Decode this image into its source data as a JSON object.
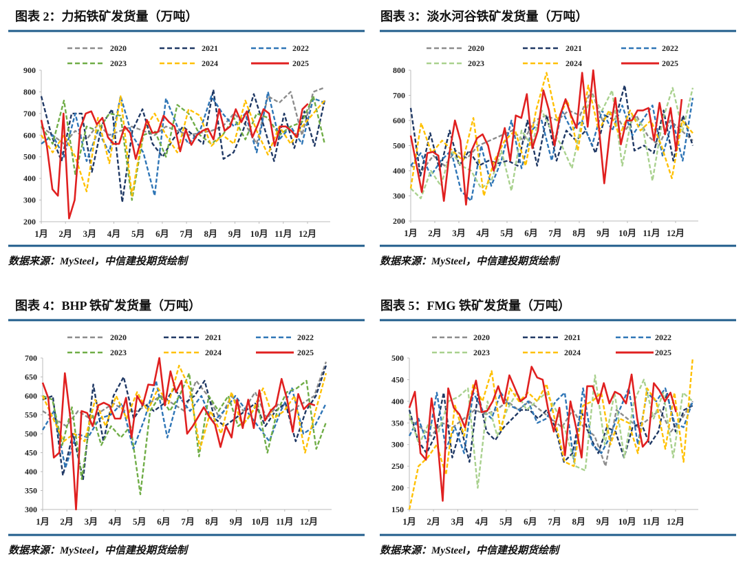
{
  "colors": {
    "2020": "#8c8c8c",
    "2021": "#1f3864",
    "2022": "#2e75b6",
    "2023": "#70ad47",
    "2023_light": "#a9d18e",
    "2024": "#ffc000",
    "2025": "#e02020",
    "rule": "#1f5c8b"
  },
  "chart_data": [
    {
      "type": "line",
      "title": "图表 2：力拓铁矿发货量（万吨）",
      "source": "数据来源：MySteel，中信建投期货绘制",
      "xlabel": "",
      "ylabel": "",
      "ylim": [
        200,
        900
      ],
      "yticks": [
        200,
        300,
        400,
        500,
        600,
        700,
        800,
        900
      ],
      "xticks": [
        "1月",
        "2月",
        "3月",
        "4月",
        "5月",
        "6月",
        "7月",
        "8月",
        "9月",
        "10月",
        "11月",
        "12月"
      ],
      "legend": "top",
      "series": [
        {
          "name": "2020",
          "values": [
            640,
            600,
            560,
            620,
            580,
            650,
            600,
            620,
            640,
            620,
            600,
            640,
            620,
            600,
            610,
            620,
            640,
            700,
            650,
            560,
            780,
            750,
            800,
            600,
            800,
            820
          ]
        },
        {
          "name": "2021",
          "values": [
            780,
            600,
            480,
            700,
            700,
            430,
            650,
            720,
            290,
            620,
            720,
            560,
            500,
            580,
            640,
            600,
            560,
            810,
            490,
            520,
            630,
            790,
            640,
            480,
            700,
            540,
            710,
            550,
            760
          ]
        },
        {
          "name": "2022",
          "values": [
            560,
            600,
            500,
            700,
            480,
            620,
            520,
            780,
            600,
            520,
            320,
            770,
            640,
            560,
            620,
            780,
            700,
            640,
            700,
            520,
            800,
            580,
            640,
            560,
            770,
            750
          ]
        },
        {
          "name": "2023",
          "values": [
            640,
            560,
            760,
            420,
            640,
            620,
            700,
            690,
            300,
            600,
            620,
            500,
            740,
            700,
            600,
            560,
            600,
            680,
            580,
            700,
            680,
            600,
            640,
            660,
            780,
            560
          ]
        },
        {
          "name": "2024",
          "values": [
            600,
            520,
            600,
            500,
            340,
            680,
            470,
            780,
            320,
            620,
            700,
            600,
            520,
            720,
            690,
            550,
            600,
            560,
            760,
            620,
            510,
            640,
            560,
            640,
            700,
            760
          ]
        },
        {
          "name": "2025",
          "values": [
            670,
            550,
            350,
            320,
            700,
            215,
            300,
            630,
            700,
            710,
            650,
            680,
            590,
            560,
            560,
            640,
            610,
            490,
            580,
            670,
            610,
            615,
            690,
            660,
            640,
            525,
            625,
            555,
            600,
            620,
            630,
            580,
            720,
            620,
            640,
            720,
            660,
            710,
            590,
            650,
            720,
            700,
            550,
            640,
            640,
            620,
            590,
            720,
            745
          ]
        }
      ]
    },
    {
      "type": "line",
      "title": "图表 3：淡水河谷铁矿发货量（万吨）",
      "source": "数据来源：MySteel，中信建投期货绘制",
      "xlabel": "",
      "ylabel": "",
      "ylim": [
        200,
        800
      ],
      "yticks": [
        200,
        300,
        400,
        500,
        600,
        700,
        800
      ],
      "xticks": [
        "1月",
        "2月",
        "3月",
        "4月",
        "5月",
        "6月",
        "7月",
        "8月",
        "9月",
        "10月",
        "11月",
        "12月"
      ],
      "legend": "top",
      "series": [
        {
          "name": "2020",
          "values": [
            420,
            400,
            460,
            420,
            480,
            450,
            500,
            520,
            540,
            560,
            520,
            600,
            620,
            600,
            640,
            620,
            720,
            600,
            640,
            560,
            620,
            540,
            500,
            600,
            560,
            520
          ]
        },
        {
          "name": "2021",
          "values": [
            650,
            380,
            550,
            400,
            560,
            420,
            480,
            420,
            440,
            430,
            440,
            420,
            600,
            420,
            620,
            440,
            560,
            520,
            560,
            470,
            620,
            600,
            740,
            480,
            500,
            470,
            640,
            440,
            620,
            500
          ]
        },
        {
          "name": "2022",
          "values": [
            420,
            470,
            380,
            440,
            480,
            320,
            280,
            500,
            340,
            440,
            600,
            410,
            560,
            600,
            440,
            640,
            560,
            600,
            500,
            640,
            560,
            660,
            540,
            600,
            660,
            460,
            600,
            440,
            690
          ]
        },
        {
          "name": "2023",
          "values": [
            330,
            290,
            400,
            340,
            480,
            420,
            400,
            330,
            360,
            480,
            320,
            560,
            500,
            640,
            560,
            500,
            410,
            600,
            700,
            640,
            720,
            420,
            620,
            580,
            360,
            600,
            730,
            560,
            730
          ]
        },
        {
          "name": "2024",
          "values": [
            330,
            590,
            470,
            520,
            480,
            440,
            610,
            300,
            440,
            520,
            560,
            420,
            640,
            790,
            600,
            680,
            480,
            740,
            560,
            640,
            540,
            640,
            560,
            600,
            500,
            370,
            600,
            550
          ]
        },
        {
          "name": "2025",
          "values": [
            540,
            430,
            315,
            470,
            475,
            460,
            280,
            470,
            600,
            520,
            265,
            480,
            530,
            545,
            500,
            400,
            480,
            570,
            440,
            620,
            610,
            705,
            490,
            560,
            720,
            640,
            500,
            620,
            685,
            620,
            570,
            790,
            575,
            800,
            580,
            350,
            550,
            690,
            505,
            600,
            600,
            640,
            640,
            650,
            520,
            670,
            545,
            650,
            480,
            685
          ]
        }
      ]
    },
    {
      "type": "line",
      "title": "图表 4：BHP 铁矿发货量（万吨）",
      "source": "数据来源：MySteel，中信建投期货绘制",
      "xlabel": "",
      "ylabel": "",
      "ylim": [
        300,
        700
      ],
      "yticks": [
        300,
        350,
        400,
        450,
        500,
        550,
        600,
        650,
        700
      ],
      "xticks": [
        "1月",
        "2月",
        "3月",
        "4月",
        "5月",
        "6月",
        "7月",
        "8月",
        "9月",
        "10月",
        "11月",
        "12月"
      ],
      "legend": "top",
      "series": [
        {
          "name": "2020",
          "values": [
            560,
            540,
            520,
            560,
            540,
            560,
            580,
            560,
            560,
            580,
            600,
            580,
            560,
            640,
            600,
            540,
            600,
            560,
            610,
            540,
            580,
            560,
            580,
            600,
            690
          ]
        },
        {
          "name": "2021",
          "values": [
            590,
            600,
            390,
            500,
            380,
            630,
            480,
            600,
            650,
            540,
            580,
            560,
            580,
            620,
            580,
            600,
            640,
            540,
            520,
            540,
            560,
            580,
            520,
            560,
            580,
            480,
            560,
            600,
            680
          ]
        },
        {
          "name": "2022",
          "values": [
            510,
            560,
            410,
            500,
            490,
            540,
            550,
            580,
            460,
            540,
            640,
            490,
            600,
            560,
            600,
            530,
            560,
            600,
            560,
            520,
            480,
            560,
            620,
            500,
            520,
            580
          ]
        },
        {
          "name": "2023",
          "values": [
            600,
            590,
            470,
            570,
            380,
            560,
            470,
            520,
            490,
            520,
            340,
            560,
            600,
            560,
            600,
            660,
            440,
            600,
            560,
            600,
            520,
            540,
            580,
            450,
            560,
            610,
            620,
            640,
            460,
            530
          ]
        },
        {
          "name": "2024",
          "values": [
            600,
            540,
            480,
            500,
            480,
            590,
            520,
            600,
            540,
            610,
            560,
            620,
            580,
            680,
            620,
            460,
            560,
            500,
            610,
            520,
            560,
            620,
            540,
            560,
            600,
            450,
            560,
            660
          ]
        },
        {
          "name": "2025",
          "values": [
            635,
            595,
            437,
            450,
            660,
            540,
            300,
            560,
            555,
            520,
            575,
            582,
            575,
            540,
            540,
            595,
            490,
            600,
            575,
            630,
            628,
            700,
            575,
            665,
            610,
            640,
            500,
            520,
            545,
            570,
            545,
            525,
            465,
            520,
            490,
            590,
            515,
            590,
            515,
            615,
            535,
            560,
            575,
            645,
            590,
            505,
            605,
            565,
            580,
            575
          ]
        }
      ]
    },
    {
      "type": "line",
      "title": "图表 5：FMG 铁矿发货量（万吨）",
      "source": "数据来源：MySteel，中信建投期货绘制",
      "xlabel": "",
      "ylabel": "",
      "ylim": [
        150,
        500
      ],
      "yticks": [
        150,
        200,
        250,
        300,
        350,
        400,
        450,
        500
      ],
      "xticks": [
        "1月",
        "2月",
        "3月",
        "4月",
        "5月",
        "6月",
        "7月",
        "8月",
        "9月",
        "10月",
        "11月",
        "12月"
      ],
      "legend": "top",
      "series": [
        {
          "name": "2020",
          "values": [
            360,
            340,
            320,
            350,
            340,
            360,
            380,
            370,
            380,
            400,
            380,
            400,
            380,
            360,
            340,
            380,
            340,
            320,
            250,
            380,
            360,
            340,
            360,
            380,
            330,
            360,
            400
          ]
        },
        {
          "name": "2021",
          "values": [
            380,
            310,
            280,
            320,
            420,
            270,
            340,
            260,
            420,
            330,
            310,
            340,
            360,
            380,
            380,
            360,
            380,
            340,
            260,
            280,
            380,
            320,
            280,
            340,
            330,
            270,
            340,
            350,
            300,
            330,
            420,
            330,
            380,
            390
          ]
        },
        {
          "name": "2022",
          "values": [
            320,
            360,
            300,
            420,
            290,
            340,
            280,
            420,
            380,
            360,
            420,
            390,
            380,
            400,
            350,
            360,
            400,
            420,
            260,
            430,
            300,
            280,
            320,
            380,
            430,
            300,
            420,
            400,
            430,
            350,
            340,
            400
          ]
        },
        {
          "name": "2023",
          "values": [
            370,
            300,
            350,
            330,
            400,
            410,
            430,
            200,
            400,
            320,
            380,
            420,
            380,
            400,
            420,
            380,
            330,
            250,
            240,
            460,
            300,
            420,
            270,
            400,
            450,
            360,
            420,
            270,
            420,
            400
          ]
        },
        {
          "name": "2024",
          "values": [
            150,
            250,
            270,
            300,
            230,
            390,
            320,
            440,
            400,
            470,
            330,
            430,
            400,
            420,
            400,
            440,
            350,
            260,
            250,
            390,
            400,
            420,
            300,
            360,
            350,
            280,
            430,
            400,
            290,
            420,
            260,
            500
          ]
        },
        {
          "name": "2025",
          "values": [
            385,
            422,
            280,
            265,
            407,
            320,
            170,
            430,
            385,
            370,
            340,
            400,
            448,
            375,
            378,
            400,
            435,
            395,
            460,
            430,
            400,
            410,
            480,
            455,
            450,
            380,
            330,
            385,
            275,
            400,
            340,
            270,
            435,
            435,
            395,
            442,
            395,
            422,
            415,
            395,
            462,
            360,
            295,
            310,
            442,
            425,
            400,
            420,
            375
          ]
        }
      ]
    }
  ]
}
